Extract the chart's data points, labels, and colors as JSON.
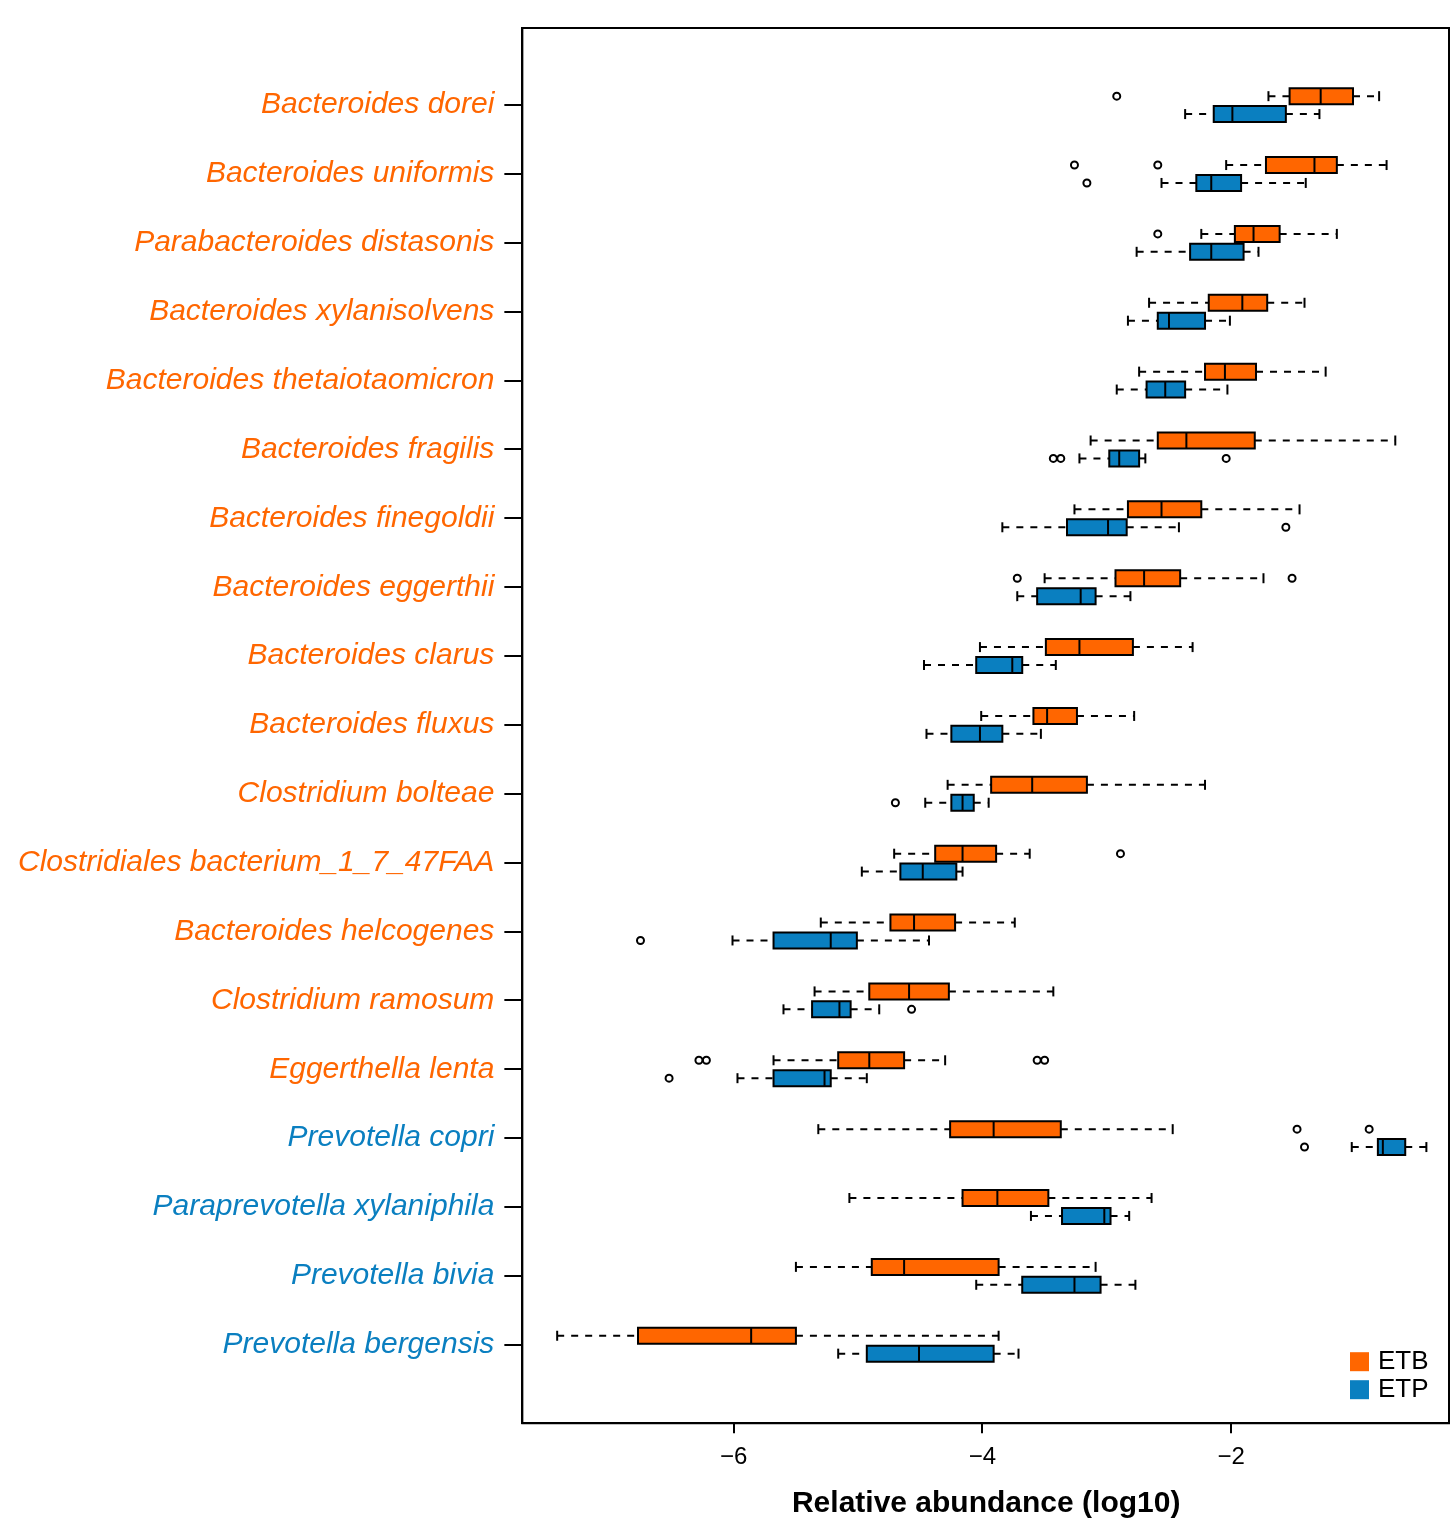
{
  "chart_data": {
    "type": "box",
    "orientation": "horizontal",
    "xlabel": "Relative abundance (log10)",
    "xlim": [
      -7.7,
      -0.24
    ],
    "xticks": [
      {
        "value": -6,
        "label": "−6"
      },
      {
        "value": -4,
        "label": "−4"
      },
      {
        "value": -2,
        "label": "−2"
      }
    ],
    "grid": false,
    "legend": "bottom right",
    "categories": [
      "Bacteroides dorei",
      "Bacteroides uniformis",
      "Parabacteroides distasonis",
      "Bacteroides xylanisolvens",
      "Bacteroides thetaiotaomicron",
      "Bacteroides fragilis",
      "Bacteroides finegoldii",
      "Bacteroides eggerthii",
      "Bacteroides clarus",
      "Bacteroides fluxus",
      "Clostridium bolteae",
      "Clostridiales bacterium_1_7_47FAA",
      "Bacteroides helcogenes",
      "Clostridium ramosum",
      "Eggerthella lenta",
      "Prevotella copri",
      "Paraprevotella xylaniphila",
      "Prevotella bivia",
      "Prevotella bergensis"
    ],
    "series": [
      {
        "name": "ETB",
        "color": "#ff6600",
        "boxes": [
          {
            "low": -1.7,
            "q1": -1.53,
            "median": -1.28,
            "q3": -1.02,
            "high": -0.81,
            "outliers": [
              -2.92
            ]
          },
          {
            "low": -2.04,
            "q1": -1.72,
            "median": -1.33,
            "q3": -1.15,
            "high": -0.75,
            "outliers": [
              -3.26,
              -2.59
            ]
          },
          {
            "low": -2.24,
            "q1": -1.97,
            "median": -1.82,
            "q3": -1.61,
            "high": -1.15,
            "outliers": [
              -2.59
            ]
          },
          {
            "low": -2.66,
            "q1": -2.18,
            "median": -1.91,
            "q3": -1.71,
            "high": -1.41
          },
          {
            "low": -2.74,
            "q1": -2.21,
            "median": -2.05,
            "q3": -1.8,
            "high": -1.24
          },
          {
            "low": -3.13,
            "q1": -2.59,
            "median": -2.36,
            "q3": -1.81,
            "high": -0.68
          },
          {
            "low": -3.26,
            "q1": -2.83,
            "median": -2.56,
            "q3": -2.24,
            "high": -1.45
          },
          {
            "low": -3.5,
            "q1": -2.93,
            "median": -2.7,
            "q3": -2.41,
            "high": -1.74,
            "outliers": [
              -3.72,
              -1.51
            ]
          },
          {
            "low": -4.02,
            "q1": -3.49,
            "median": -3.22,
            "q3": -2.79,
            "high": -2.31
          },
          {
            "low": -4.01,
            "q1": -3.59,
            "median": -3.48,
            "q3": -3.24,
            "high": -2.78
          },
          {
            "low": -4.28,
            "q1": -3.93,
            "median": -3.6,
            "q3": -3.16,
            "high": -2.21
          },
          {
            "low": -4.71,
            "q1": -4.38,
            "median": -4.16,
            "q3": -3.89,
            "high": -3.62,
            "outliers": [
              -2.89
            ]
          },
          {
            "low": -5.3,
            "q1": -4.74,
            "median": -4.55,
            "q3": -4.22,
            "high": -3.74
          },
          {
            "low": -5.35,
            "q1": -4.91,
            "median": -4.59,
            "q3": -4.27,
            "high": -3.43
          },
          {
            "low": -5.68,
            "q1": -5.16,
            "median": -4.91,
            "q3": -4.63,
            "high": -4.3,
            "outliers": [
              -6.28,
              -6.22,
              -3.56,
              -3.5
            ]
          },
          {
            "low": -5.32,
            "q1": -4.26,
            "median": -3.91,
            "q3": -3.37,
            "high": -2.47,
            "outliers": [
              -1.47,
              -0.89
            ]
          },
          {
            "low": -5.07,
            "q1": -4.16,
            "median": -3.88,
            "q3": -3.47,
            "high": -2.64
          },
          {
            "low": -5.5,
            "q1": -4.89,
            "median": -4.63,
            "q3": -3.87,
            "high": -3.09
          },
          {
            "low": -7.42,
            "q1": -6.77,
            "median": -5.86,
            "q3": -5.5,
            "high": -3.87
          }
        ]
      },
      {
        "name": "ETP",
        "color": "#0a7fc0",
        "boxes": [
          {
            "low": -2.37,
            "q1": -2.14,
            "median": -1.99,
            "q3": -1.56,
            "high": -1.29
          },
          {
            "low": -2.56,
            "q1": -2.28,
            "median": -2.16,
            "q3": -1.92,
            "high": -1.4,
            "outliers": [
              -3.16
            ]
          },
          {
            "low": -2.76,
            "q1": -2.33,
            "median": -2.16,
            "q3": -1.9,
            "high": -1.78
          },
          {
            "low": -2.83,
            "q1": -2.59,
            "median": -2.5,
            "q3": -2.21,
            "high": -2.01
          },
          {
            "low": -2.92,
            "q1": -2.68,
            "median": -2.53,
            "q3": -2.37,
            "high": -2.03
          },
          {
            "low": -3.22,
            "q1": -2.98,
            "median": -2.9,
            "q3": -2.74,
            "high": -2.69,
            "outliers": [
              -3.43,
              -3.37,
              -2.04
            ]
          },
          {
            "low": -3.84,
            "q1": -3.32,
            "median": -2.99,
            "q3": -2.84,
            "high": -2.42,
            "outliers": [
              -1.56
            ]
          },
          {
            "low": -3.72,
            "q1": -3.56,
            "median": -3.21,
            "q3": -3.09,
            "high": -2.81
          },
          {
            "low": -4.47,
            "q1": -4.05,
            "median": -3.76,
            "q3": -3.68,
            "high": -3.41
          },
          {
            "low": -4.45,
            "q1": -4.25,
            "median": -4.02,
            "q3": -3.84,
            "high": -3.53
          },
          {
            "low": -4.46,
            "q1": -4.25,
            "median": -4.16,
            "q3": -4.07,
            "high": -3.95,
            "outliers": [
              -4.7
            ]
          },
          {
            "low": -4.97,
            "q1": -4.66,
            "median": -4.48,
            "q3": -4.21,
            "high": -4.16
          },
          {
            "low": -6.01,
            "q1": -5.68,
            "median": -5.22,
            "q3": -5.01,
            "high": -4.43,
            "outliers": [
              -6.75
            ]
          },
          {
            "low": -5.6,
            "q1": -5.37,
            "median": -5.15,
            "q3": -5.06,
            "high": -4.83,
            "outliers": [
              -4.57
            ]
          },
          {
            "low": -5.97,
            "q1": -5.68,
            "median": -5.27,
            "q3": -5.22,
            "high": -4.93,
            "outliers": [
              -6.52
            ]
          },
          {
            "low": -1.03,
            "q1": -0.82,
            "median": -0.78,
            "q3": -0.6,
            "high": -0.43,
            "outliers": [
              -1.41
            ]
          },
          {
            "low": -3.61,
            "q1": -3.36,
            "median": -3.02,
            "q3": -2.97,
            "high": -2.82
          },
          {
            "low": -4.05,
            "q1": -3.68,
            "median": -3.26,
            "q3": -3.05,
            "high": -2.77
          },
          {
            "low": -5.16,
            "q1": -4.93,
            "median": -4.51,
            "q3": -3.91,
            "high": -3.71
          }
        ]
      }
    ]
  }
}
